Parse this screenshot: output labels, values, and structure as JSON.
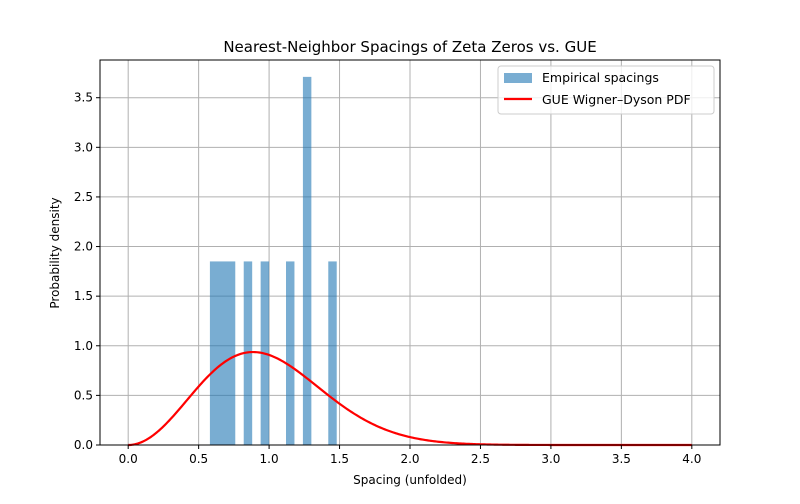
{
  "chart_data": {
    "type": "bar",
    "title": "Nearest-Neighbor Spacings of Zeta Zeros vs. GUE",
    "xlabel": "Spacing (unfolded)",
    "ylabel": "Probability density",
    "xlim": [
      -0.2,
      4.2
    ],
    "ylim": [
      0,
      3.88
    ],
    "xticks": [
      "0.0",
      "0.5",
      "1.0",
      "1.5",
      "2.0",
      "2.5",
      "3.0",
      "3.5",
      "4.0"
    ],
    "yticks": [
      "0.0",
      "0.5",
      "1.0",
      "1.5",
      "2.0",
      "2.5",
      "3.0",
      "3.5"
    ],
    "grid": true,
    "legend_position": "upper right",
    "series": [
      {
        "name": "Empirical spacings",
        "kind": "histogram",
        "color": "#1f77b4",
        "bins": [
          {
            "x0": 0.58,
            "x1": 0.76,
            "density": 1.85
          },
          {
            "x0": 0.82,
            "x1": 0.88,
            "density": 1.85
          },
          {
            "x0": 0.94,
            "x1": 1.0,
            "density": 1.85
          },
          {
            "x0": 1.12,
            "x1": 1.18,
            "density": 1.85
          },
          {
            "x0": 1.24,
            "x1": 1.3,
            "density": 3.71
          },
          {
            "x0": 1.42,
            "x1": 1.48,
            "density": 1.85
          }
        ]
      },
      {
        "name": "GUE Wigner–Dyson PDF",
        "kind": "line",
        "color": "#ff0000",
        "formula": "p(s) = (32/pi^2) s^2 exp(-4 s^2 / pi)",
        "x_range": [
          0,
          4
        ]
      }
    ]
  }
}
